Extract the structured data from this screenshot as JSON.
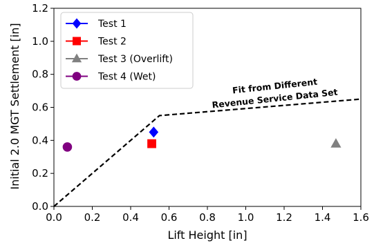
{
  "chart_data": {
    "type": "scatter",
    "xlabel": "Lift Height [in]",
    "ylabel": "Initial 2.0 MGT Settlement [in]",
    "xlim": [
      0.0,
      1.6
    ],
    "ylim": [
      0.0,
      1.2
    ],
    "xticks": [
      "0.0",
      "0.2",
      "0.4",
      "0.6",
      "0.8",
      "1.0",
      "1.2",
      "1.4",
      "1.6"
    ],
    "yticks": [
      "0.0",
      "0.2",
      "0.4",
      "0.6",
      "0.8",
      "1.0",
      "1.2"
    ],
    "grid": false,
    "legend_position": "top-left",
    "series": [
      {
        "name": "Test 1",
        "marker": "diamond",
        "color": "#0000ff",
        "x": [
          0.52
        ],
        "y": [
          0.45
        ]
      },
      {
        "name": "Test 2",
        "marker": "square",
        "color": "#ff0000",
        "x": [
          0.51
        ],
        "y": [
          0.38
        ]
      },
      {
        "name": "Test 3 (Overlift)",
        "marker": "triangle",
        "color": "#808080",
        "x": [
          1.47
        ],
        "y": [
          0.38
        ]
      },
      {
        "name": "Test 4 (Wet)",
        "marker": "circle",
        "color": "#800080",
        "x": [
          0.07
        ],
        "y": [
          0.36
        ]
      }
    ],
    "fit_line": {
      "style": "dashed",
      "color": "#000000",
      "x": [
        0.0,
        0.55,
        1.6
      ],
      "y": [
        0.0,
        0.55,
        0.65
      ]
    },
    "annotation": {
      "lines": [
        "Fit from Different",
        "Revenue Service Data Set"
      ]
    }
  }
}
